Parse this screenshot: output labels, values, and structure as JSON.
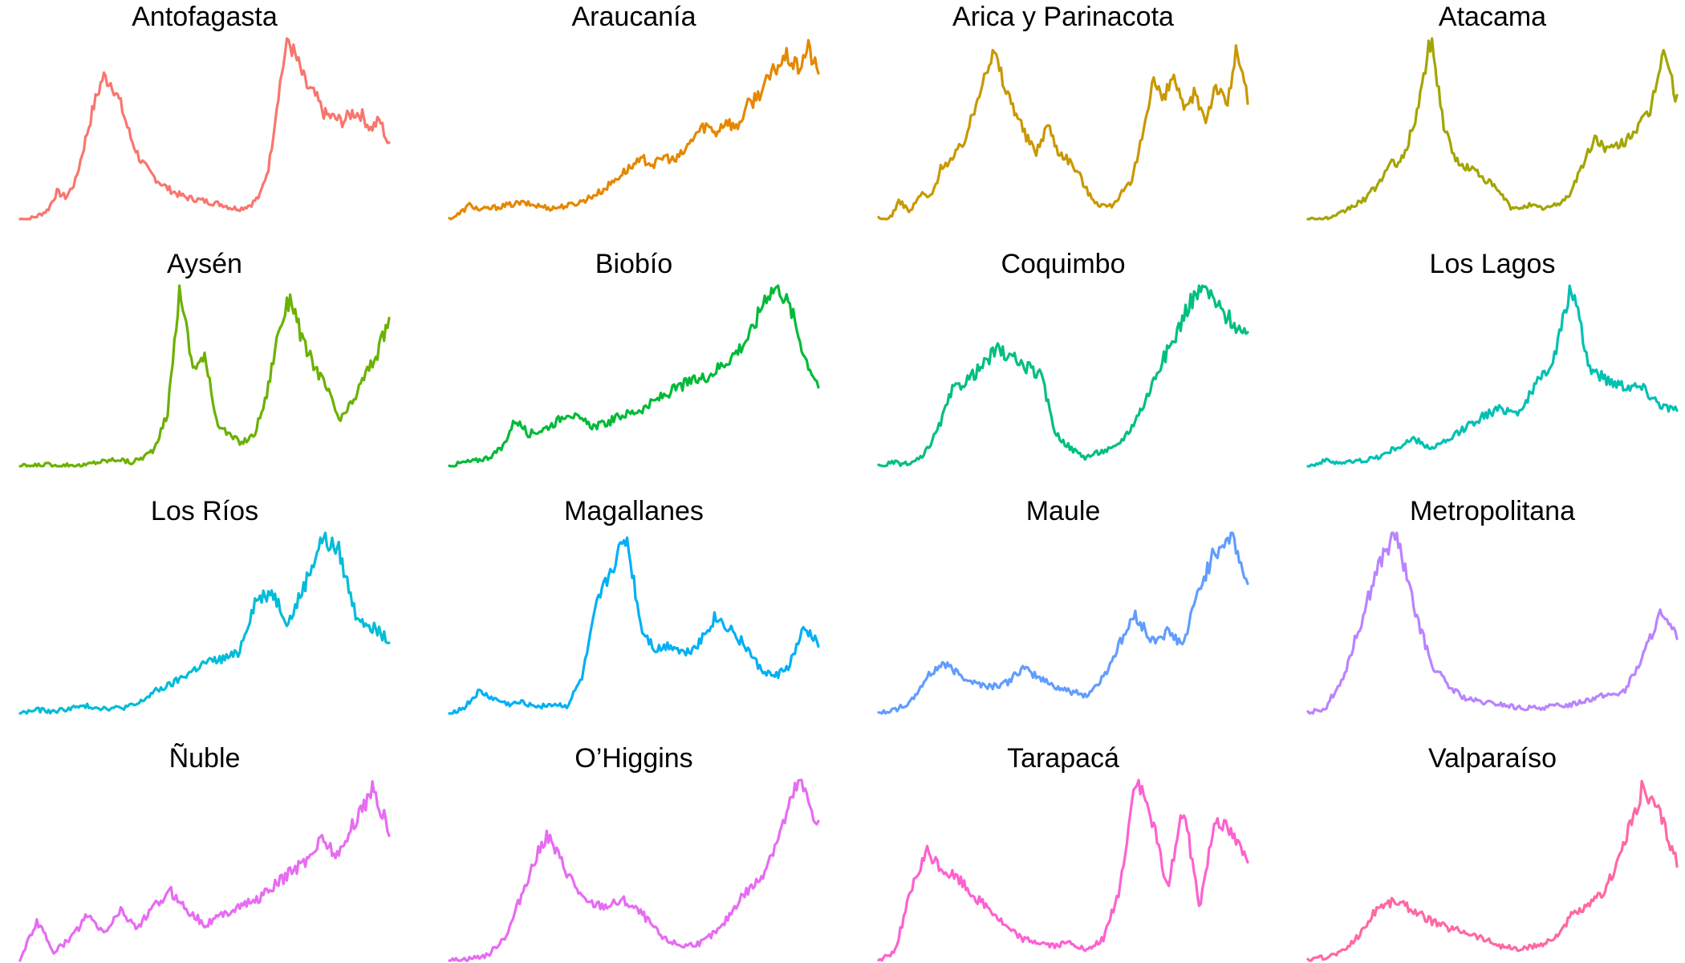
{
  "chart_data": [
    {
      "type": "line",
      "title": "Antofagasta",
      "color": "#F8766D",
      "y": [
        0.0,
        0.0,
        0.02,
        0.05,
        0.15,
        0.12,
        0.21,
        0.42,
        0.63,
        0.79,
        0.75,
        0.62,
        0.45,
        0.33,
        0.26,
        0.21,
        0.17,
        0.14,
        0.12,
        0.11,
        0.1,
        0.09,
        0.08,
        0.06,
        0.06,
        0.08,
        0.13,
        0.3,
        0.7,
        1.0,
        0.88,
        0.74,
        0.68,
        0.58,
        0.56,
        0.54,
        0.59,
        0.58,
        0.5,
        0.55,
        0.4
      ]
    },
    {
      "type": "line",
      "title": "Araucanía",
      "color": "#E58700",
      "y": [
        0.0,
        0.03,
        0.08,
        0.05,
        0.06,
        0.07,
        0.08,
        0.09,
        0.08,
        0.07,
        0.06,
        0.07,
        0.08,
        0.1,
        0.13,
        0.16,
        0.21,
        0.26,
        0.3,
        0.33,
        0.3,
        0.35,
        0.32,
        0.38,
        0.47,
        0.52,
        0.48,
        0.55,
        0.5,
        0.62,
        0.68,
        0.76,
        0.85,
        0.9,
        0.83,
        0.95,
        0.8
      ]
    },
    {
      "type": "line",
      "title": "Arica y Parinacota",
      "color": "#C99800",
      "y": [
        0.0,
        0.0,
        0.1,
        0.04,
        0.14,
        0.12,
        0.3,
        0.33,
        0.42,
        0.58,
        0.82,
        0.92,
        0.72,
        0.6,
        0.45,
        0.37,
        0.53,
        0.38,
        0.33,
        0.25,
        0.13,
        0.08,
        0.07,
        0.14,
        0.2,
        0.46,
        0.78,
        0.65,
        0.8,
        0.58,
        0.7,
        0.55,
        0.75,
        0.62,
        0.95,
        0.66
      ]
    },
    {
      "type": "line",
      "title": "Atacama",
      "color": "#A3A500",
      "y": [
        0.0,
        0.0,
        0.01,
        0.06,
        0.1,
        0.18,
        0.3,
        0.33,
        0.6,
        1.0,
        0.5,
        0.3,
        0.28,
        0.22,
        0.15,
        0.05,
        0.08,
        0.06,
        0.07,
        0.12,
        0.28,
        0.45,
        0.38,
        0.42,
        0.5,
        0.58,
        0.95,
        0.65
      ]
    },
    {
      "type": "line",
      "title": "Aysén",
      "color": "#6BB100",
      "y": [
        0.0,
        0.0,
        0.01,
        0.0,
        0.01,
        0.0,
        0.02,
        0.03,
        0.04,
        0.02,
        0.05,
        0.1,
        0.3,
        1.0,
        0.55,
        0.6,
        0.25,
        0.17,
        0.13,
        0.17,
        0.38,
        0.75,
        0.95,
        0.68,
        0.55,
        0.42,
        0.25,
        0.35,
        0.5,
        0.62,
        0.81
      ]
    },
    {
      "type": "line",
      "title": "Biobío",
      "color": "#00BA38",
      "y": [
        0.0,
        0.02,
        0.03,
        0.05,
        0.1,
        0.26,
        0.18,
        0.2,
        0.24,
        0.3,
        0.25,
        0.22,
        0.24,
        0.28,
        0.3,
        0.33,
        0.38,
        0.42,
        0.46,
        0.48,
        0.52,
        0.58,
        0.65,
        0.75,
        0.95,
        1.0,
        0.85,
        0.6,
        0.45
      ]
    },
    {
      "type": "line",
      "title": "Coquimbo",
      "color": "#00BF7D",
      "y": [
        0.0,
        0.02,
        0.01,
        0.05,
        0.2,
        0.42,
        0.48,
        0.55,
        0.65,
        0.6,
        0.55,
        0.5,
        0.18,
        0.1,
        0.05,
        0.08,
        0.1,
        0.2,
        0.35,
        0.55,
        0.7,
        0.9,
        1.0,
        0.88,
        0.8,
        0.7
      ]
    },
    {
      "type": "line",
      "title": "Los Lagos",
      "color": "#00C0B2",
      "y": [
        0.0,
        0.03,
        0.02,
        0.03,
        0.05,
        0.1,
        0.15,
        0.1,
        0.14,
        0.22,
        0.28,
        0.32,
        0.3,
        0.45,
        0.6,
        1.0,
        0.55,
        0.48,
        0.45,
        0.44,
        0.35,
        0.3
      ]
    },
    {
      "type": "line",
      "title": "Los Ríos",
      "color": "#00BCD8",
      "y": [
        0.0,
        0.02,
        0.01,
        0.03,
        0.04,
        0.03,
        0.03,
        0.05,
        0.12,
        0.16,
        0.22,
        0.28,
        0.3,
        0.33,
        0.62,
        0.68,
        0.5,
        0.72,
        0.97,
        0.9,
        0.55,
        0.48,
        0.4
      ]
    },
    {
      "type": "line",
      "title": "Magallanes",
      "color": "#00B0F6",
      "y": [
        0.0,
        0.03,
        0.12,
        0.08,
        0.05,
        0.06,
        0.04,
        0.05,
        0.04,
        0.2,
        0.6,
        0.8,
        0.98,
        0.47,
        0.35,
        0.38,
        0.33,
        0.4,
        0.53,
        0.47,
        0.38,
        0.25,
        0.2,
        0.26,
        0.46,
        0.4
      ]
    },
    {
      "type": "line",
      "title": "Maule",
      "color": "#619CFF",
      "y": [
        0.0,
        0.02,
        0.06,
        0.2,
        0.28,
        0.22,
        0.17,
        0.15,
        0.17,
        0.25,
        0.2,
        0.15,
        0.12,
        0.1,
        0.2,
        0.38,
        0.55,
        0.4,
        0.45,
        0.38,
        0.7,
        0.9,
        1.0,
        0.7
      ]
    },
    {
      "type": "line",
      "title": "Metropolitana",
      "color": "#B983FF",
      "y": [
        0.0,
        0.03,
        0.2,
        0.5,
        0.82,
        1.0,
        0.6,
        0.28,
        0.15,
        0.08,
        0.06,
        0.05,
        0.03,
        0.03,
        0.04,
        0.05,
        0.08,
        0.1,
        0.12,
        0.3,
        0.55,
        0.42
      ]
    },
    {
      "type": "line",
      "title": "Ñuble",
      "color": "#E76BF3",
      "y": [
        0.0,
        0.22,
        0.05,
        0.12,
        0.25,
        0.15,
        0.28,
        0.18,
        0.3,
        0.38,
        0.28,
        0.2,
        0.25,
        0.3,
        0.33,
        0.4,
        0.48,
        0.55,
        0.68,
        0.58,
        0.78,
        0.95,
        0.73
      ]
    },
    {
      "type": "line",
      "title": "O’Higgins",
      "color": "#E76BF3",
      "y": [
        0.0,
        0.01,
        0.03,
        0.15,
        0.45,
        0.7,
        0.5,
        0.32,
        0.3,
        0.33,
        0.25,
        0.12,
        0.08,
        0.1,
        0.18,
        0.35,
        0.45,
        0.7,
        1.0,
        0.75
      ]
    },
    {
      "type": "line",
      "title": "Tarapacá",
      "color": "#FD61D1",
      "y": [
        0.0,
        0.05,
        0.38,
        0.6,
        0.5,
        0.45,
        0.35,
        0.28,
        0.18,
        0.12,
        0.1,
        0.08,
        0.1,
        0.05,
        0.12,
        0.38,
        1.0,
        0.8,
        0.4,
        0.85,
        0.3,
        0.8,
        0.7,
        0.55
      ]
    },
    {
      "type": "line",
      "title": "Valparaíso",
      "color": "#FF67A4",
      "y": [
        0.0,
        0.02,
        0.05,
        0.15,
        0.3,
        0.33,
        0.28,
        0.22,
        0.18,
        0.16,
        0.12,
        0.08,
        0.06,
        0.08,
        0.12,
        0.25,
        0.3,
        0.4,
        0.65,
        0.95,
        0.82,
        0.55
      ]
    }
  ]
}
